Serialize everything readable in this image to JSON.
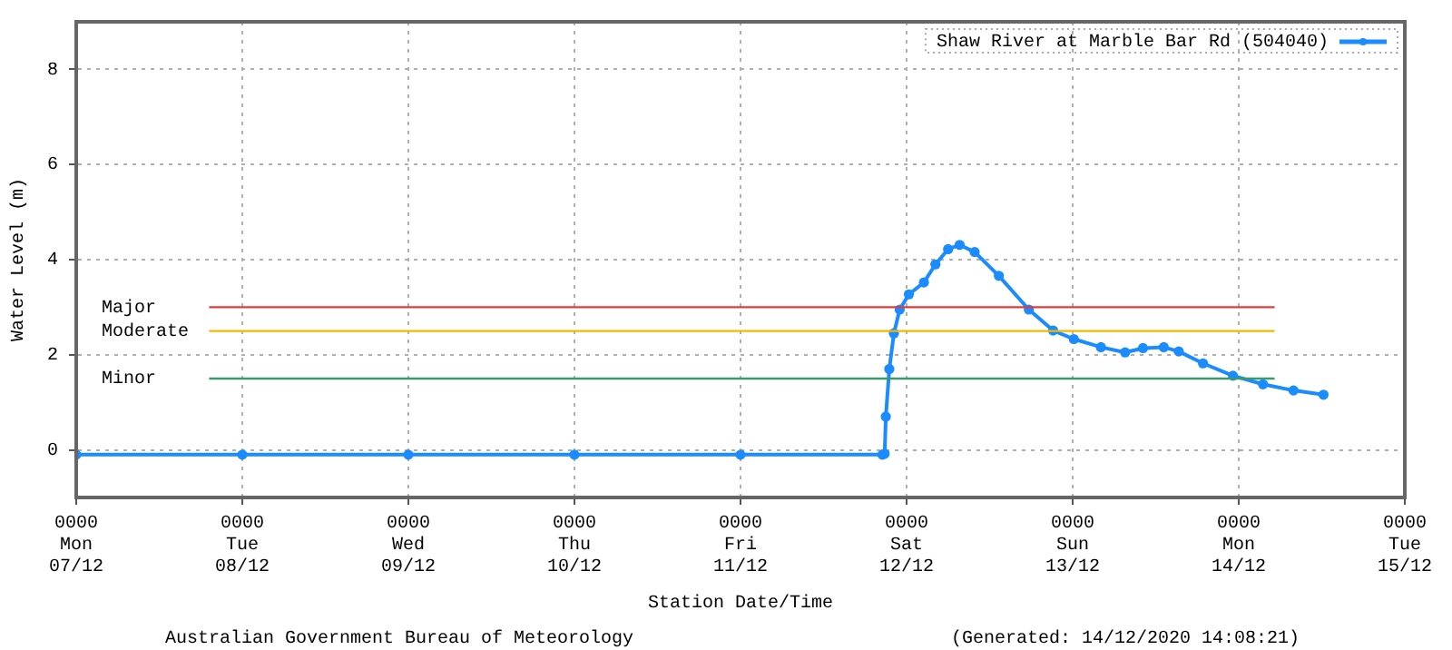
{
  "chart_data": {
    "type": "line",
    "xlabel": "Station Date/Time",
    "ylabel": "Water Level (m)",
    "x": [
      "2020-12-07T00:00",
      "2020-12-08T00:00",
      "2020-12-09T00:00",
      "2020-12-10T00:00",
      "2020-12-11T00:00",
      "2020-12-11T20:30",
      "2020-12-11T20:50",
      "2020-12-11T21:00",
      "2020-12-11T21:30",
      "2020-12-11T22:10",
      "2020-12-11T23:00",
      "2020-12-12T00:20",
      "2020-12-12T02:30",
      "2020-12-12T04:10",
      "2020-12-12T06:00",
      "2020-12-12T07:40",
      "2020-12-12T09:50",
      "2020-12-12T13:20",
      "2020-12-12T17:40",
      "2020-12-12T21:10",
      "2020-12-13T00:10",
      "2020-12-13T04:05",
      "2020-12-13T07:35",
      "2020-12-13T10:10",
      "2020-12-13T13:10",
      "2020-12-13T15:20",
      "2020-12-13T18:50",
      "2020-12-13T23:10",
      "2020-12-14T03:30",
      "2020-12-14T07:55",
      "2020-12-14T12:15"
    ],
    "series": [
      {
        "name": "Shaw River at Marble Bar Rd (504040)",
        "color": "#1a8cff",
        "values": [
          -0.1,
          -0.1,
          -0.1,
          -0.1,
          -0.1,
          -0.1,
          -0.08,
          0.7,
          1.7,
          2.45,
          2.95,
          3.27,
          3.52,
          3.9,
          4.22,
          4.31,
          4.16,
          3.66,
          2.95,
          2.51,
          2.33,
          2.16,
          2.05,
          2.14,
          2.16,
          2.07,
          1.82,
          1.56,
          1.38,
          1.25,
          1.16
        ]
      }
    ],
    "xlim": [
      "2020-12-07T00:00",
      "2020-12-15T00:00"
    ],
    "xticks": [
      {
        "value": "2020-12-07T00:00",
        "label": "0000\nMon\n07/12"
      },
      {
        "value": "2020-12-08T00:00",
        "label": "0000\nTue\n08/12"
      },
      {
        "value": "2020-12-09T00:00",
        "label": "0000\nWed\n09/12"
      },
      {
        "value": "2020-12-10T00:00",
        "label": "0000\nThu\n10/12"
      },
      {
        "value": "2020-12-11T00:00",
        "label": "0000\nFri\n11/12"
      },
      {
        "value": "2020-12-12T00:00",
        "label": "0000\nSat\n12/12"
      },
      {
        "value": "2020-12-13T00:00",
        "label": "0000\nSun\n13/12"
      },
      {
        "value": "2020-12-14T00:00",
        "label": "0000\nMon\n14/12"
      },
      {
        "value": "2020-12-15T00:00",
        "label": "0000\nTue\n15/12"
      }
    ],
    "ylim": [
      -1,
      9
    ],
    "yticks": [
      0,
      2,
      4,
      6,
      8
    ],
    "ref_lines": [
      {
        "axis": "y",
        "value": 3,
        "label": "Major",
        "color": "#e03c3c"
      },
      {
        "axis": "y",
        "value": 2.5,
        "label": "Moderate",
        "color": "#f0b800"
      },
      {
        "axis": "y",
        "value": 1.5,
        "label": "Minor",
        "color": "#3a9a6e"
      }
    ],
    "annotations": [
      "Australian Government Bureau of Meteorology",
      "(Generated: 14/12/2020 14:08:21)"
    ],
    "grid": true,
    "legend": "top right",
    "marker": "circle",
    "line_style": "solid"
  }
}
